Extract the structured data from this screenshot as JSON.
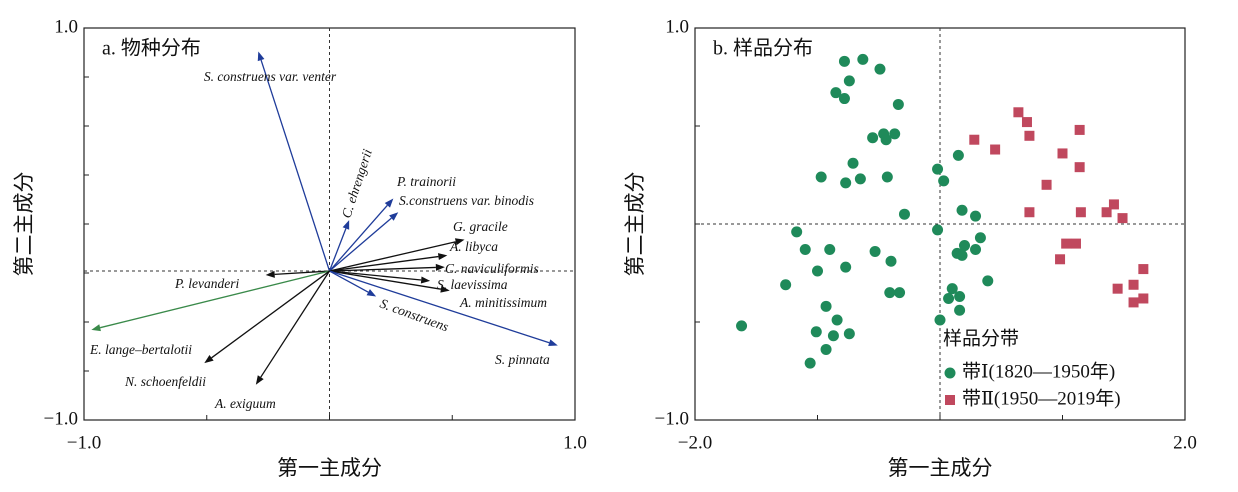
{
  "chart_data": [
    {
      "type": "biplot",
      "title": "a. 物种分布",
      "xlabel": "第一主成分",
      "ylabel": "第二主成分",
      "xlim": [
        -1,
        1
      ],
      "ylim": [
        -1,
        1
      ],
      "xticks": [
        {
          "value": -1,
          "label": "−1.0"
        },
        {
          "value": 1,
          "label": "1.0"
        }
      ],
      "yticks": [
        {
          "value": -1,
          "label": "−1.0"
        },
        {
          "value": 1,
          "label": "1.0"
        }
      ],
      "xminor": [
        -0.5,
        0,
        0.5
      ],
      "yminor": [
        -0.75,
        -0.5,
        -0.25,
        0,
        0.25,
        0.5,
        0.75
      ],
      "origin": [
        0,
        -0.24
      ],
      "arrows": [
        {
          "label": "S. construens var. venter",
          "x": -0.29,
          "y": 0.88,
          "color": "#1f3c9a"
        },
        {
          "label": "C. ehrengerii",
          "x": 0.08,
          "y": 0.02,
          "color": "#1f3c9a"
        },
        {
          "label": "P. trainorii",
          "x": 0.26,
          "y": 0.13,
          "color": "#1f3c9a"
        },
        {
          "label": "S.construens var. binodis",
          "x": 0.28,
          "y": 0.06,
          "color": "#1f3c9a"
        },
        {
          "label": "G. gracile",
          "x": 0.55,
          "y": -0.08,
          "color": "#111111"
        },
        {
          "label": "A. libyca",
          "x": 0.48,
          "y": -0.16,
          "color": "#111111"
        },
        {
          "label": "C. naviculiformis",
          "x": 0.47,
          "y": -0.22,
          "color": "#111111"
        },
        {
          "label": "S. laevissima",
          "x": 0.41,
          "y": -0.29,
          "color": "#111111"
        },
        {
          "label": "A. minitissimum",
          "x": 0.49,
          "y": -0.34,
          "color": "#111111"
        },
        {
          "label": "S. construens",
          "x": 0.19,
          "y": -0.37,
          "color": "#1f3c9a"
        },
        {
          "label": "S. pinnata",
          "x": 0.93,
          "y": -0.62,
          "color": "#1f3c9a"
        },
        {
          "label": "P. levanderi",
          "x": -0.26,
          "y": -0.26,
          "color": "#111111"
        },
        {
          "label": "E. lange–bertalotii",
          "x": -0.97,
          "y": -0.54,
          "color": "#3a8a4a"
        },
        {
          "label": "N. schoenfeldii",
          "x": -0.51,
          "y": -0.71,
          "color": "#111111"
        },
        {
          "label": "A. exiguum",
          "x": -0.3,
          "y": -0.82,
          "color": "#111111"
        }
      ]
    },
    {
      "type": "scatter",
      "title": "b. 样品分布",
      "xlabel": "第一主成分",
      "ylabel": "第二主成分",
      "xlim": [
        -2,
        2
      ],
      "ylim": [
        -1,
        1
      ],
      "xticks": [
        {
          "value": -2,
          "label": "−2.0"
        },
        {
          "value": 2,
          "label": "2.0"
        }
      ],
      "yticks": [
        {
          "value": -1,
          "label": "−1.0"
        },
        {
          "value": 1,
          "label": "1.0"
        }
      ],
      "xminor": [
        -1,
        0,
        1
      ],
      "yminor": [
        -0.5,
        0,
        0.5
      ],
      "origin": [
        0,
        0
      ],
      "legend_title": "样品分带",
      "series": [
        {
          "name": "带Ⅰ(1820—1950年)",
          "color": "#1f8a5a",
          "marker": "circle",
          "x": [
            -0.78,
            -0.63,
            -0.49,
            -0.74,
            -0.85,
            -0.78,
            -0.34,
            -0.46,
            -0.37,
            -0.55,
            -0.44,
            -0.71,
            -0.97,
            -0.77,
            -0.65,
            -0.43,
            0.15,
            -0.02,
            0.03,
            -0.29,
            0.18,
            0.29,
            -1.17,
            -0.02,
            0.33,
            0.2,
            0.29,
            0.14,
            0.18,
            -1.1,
            -0.9,
            -0.53,
            -0.4,
            -1.0,
            -0.77,
            -1.26,
            0.39,
            -0.41,
            -0.33,
            0.1,
            0.16,
            0.07,
            -0.93,
            0.0,
            0.16,
            -1.62,
            -0.84,
            -1.01,
            -0.87,
            -0.74,
            -0.93,
            -1.06
          ],
          "values": [
            0.83,
            0.84,
            0.79,
            0.73,
            0.67,
            0.64,
            0.61,
            0.46,
            0.46,
            0.44,
            0.43,
            0.31,
            0.24,
            0.21,
            0.23,
            0.24,
            0.35,
            0.28,
            0.22,
            0.05,
            0.07,
            0.04,
            -0.04,
            -0.03,
            -0.07,
            -0.11,
            -0.13,
            -0.15,
            -0.16,
            -0.13,
            -0.13,
            -0.14,
            -0.19,
            -0.24,
            -0.22,
            -0.31,
            -0.29,
            -0.35,
            -0.35,
            -0.33,
            -0.37,
            -0.38,
            -0.42,
            -0.49,
            -0.44,
            -0.52,
            -0.49,
            -0.55,
            -0.57,
            -0.56,
            -0.64,
            -0.71
          ]
        },
        {
          "name": "带Ⅱ(1950—2019年)",
          "color": "#c0485e",
          "marker": "square",
          "x": [
            0.64,
            0.71,
            1.14,
            0.28,
            0.73,
            0.45,
            1.0,
            1.14,
            0.87,
            0.73,
            1.15,
            1.36,
            1.42,
            1.49,
            1.03,
            1.11,
            0.98,
            1.66,
            1.45,
            1.58,
            1.66,
            1.58
          ],
          "values": [
            0.57,
            0.52,
            0.48,
            0.43,
            0.45,
            0.38,
            0.36,
            0.29,
            0.2,
            0.06,
            0.06,
            0.06,
            0.1,
            0.03,
            -0.1,
            -0.1,
            -0.18,
            -0.23,
            -0.33,
            -0.31,
            -0.38,
            -0.4
          ]
        }
      ]
    }
  ]
}
